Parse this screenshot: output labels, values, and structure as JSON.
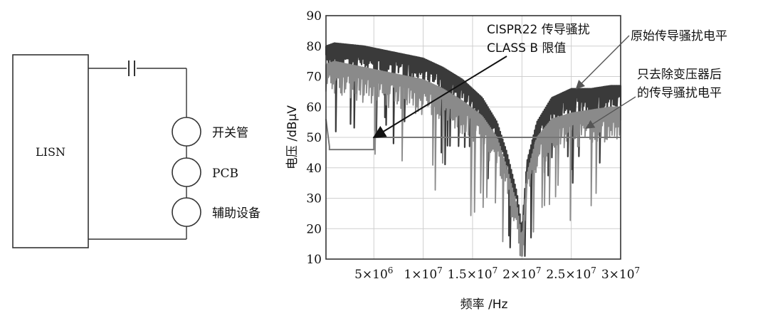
{
  "circuit": {
    "lisn_label": "LISN",
    "components": [
      "开关管",
      "PCB",
      "辅助设备"
    ]
  },
  "chart_data": {
    "type": "line",
    "xlabel": "频率 /Hz",
    "ylabel": "电压 /dBμV",
    "xlim": [
      150000,
      30000000
    ],
    "ylim": [
      10,
      90
    ],
    "y_ticks": [
      10,
      20,
      30,
      40,
      50,
      60,
      70,
      80,
      90
    ],
    "x_ticks": [
      {
        "mantissa": "5",
        "exp": "6",
        "value": 5000000
      },
      {
        "mantissa": "1",
        "exp": "7",
        "value": 10000000
      },
      {
        "mantissa": "1.5",
        "exp": "7",
        "value": 15000000
      },
      {
        "mantissa": "2",
        "exp": "7",
        "value": 20000000
      },
      {
        "mantissa": "2.5",
        "exp": "7",
        "value": 25000000
      },
      {
        "mantissa": "3",
        "exp": "7",
        "value": 30000000
      }
    ],
    "grid": true,
    "colors": {
      "original": "#3a3a3a",
      "filtered": "#8a8a8a",
      "limit": "#777777"
    },
    "series": [
      {
        "key": "original",
        "envelope_x": [
          150000,
          1000000,
          4000000,
          7000000,
          10000000,
          12000000,
          14000000,
          16000000,
          17500000,
          18500000,
          19500000,
          20000000,
          20500000,
          21500000,
          23000000,
          25000000,
          27000000,
          29000000,
          30000000
        ],
        "envelope_y": [
          80,
          81,
          80,
          78,
          76,
          73,
          69,
          63,
          55,
          45,
          32,
          20,
          42,
          55,
          63,
          66,
          66,
          67,
          67
        ],
        "depth": 7
      },
      {
        "key": "filtered",
        "envelope_x": [
          150000,
          1000000,
          4000000,
          7000000,
          10000000,
          12000000,
          14000000,
          16000000,
          17500000,
          18500000,
          19500000,
          20000000,
          20500000,
          21500000,
          23000000,
          25000000,
          27000000,
          29000000,
          30000000
        ],
        "envelope_y": [
          74,
          75,
          73,
          71,
          69,
          66,
          62,
          57,
          50,
          40,
          28,
          17,
          38,
          50,
          56,
          58,
          59,
          60,
          60
        ],
        "depth": 9
      }
    ],
    "limit_line": {
      "x": [
        150000,
        500000,
        500000,
        5000000,
        5000000,
        30000000
      ],
      "y": [
        56,
        47,
        46,
        46,
        50,
        50
      ]
    },
    "annotations": [
      {
        "lines": [
          "CISPR22 传导骚扰",
          "CLASS B 限值"
        ],
        "target": [
          5000000,
          50
        ]
      },
      {
        "lines": [
          "原始传导骚扰电平"
        ],
        "target": [
          25500000,
          66
        ]
      },
      {
        "lines": [
          "只去除变压器后",
          "的传导骚扰电平"
        ],
        "target": [
          26500000,
          53
        ]
      }
    ]
  }
}
